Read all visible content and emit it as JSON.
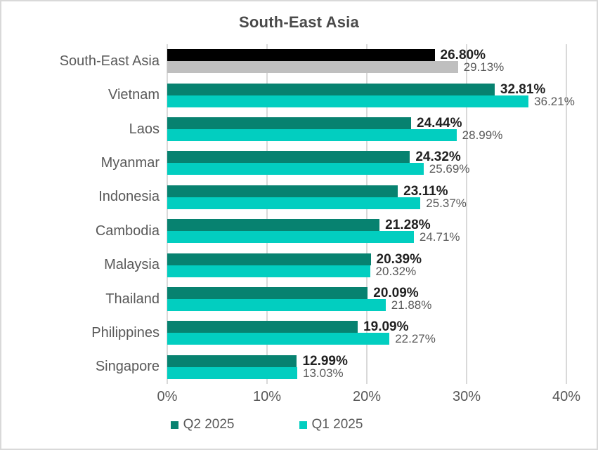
{
  "colors": {
    "gridline": "#D9D9D9",
    "axis_text": "#595959",
    "title_text": "#4A4A4A",
    "value_label_bold": "#212121",
    "value_label_gray": "#595959",
    "frame_border": "#D9D9D9",
    "background": "#FFFFFF"
  },
  "chart_data": {
    "type": "bar",
    "orientation": "horizontal",
    "title": "South-East Asia",
    "xlabel": "",
    "ylabel": "",
    "xlim": [
      0,
      40
    ],
    "x_ticks": [
      "0%",
      "10%",
      "20%",
      "30%",
      "40%"
    ],
    "x_tick_values": [
      0,
      10,
      20,
      30,
      40
    ],
    "grid": "vertical",
    "legend_position": "bottom",
    "categories": [
      "South-East Asia",
      "Vietnam",
      "Laos",
      "Myanmar",
      "Indonesia",
      "Cambodia",
      "Malaysia",
      "Thailand",
      "Philippines",
      "Singapore"
    ],
    "series": [
      {
        "name": "Q2 2025",
        "color": "#078270",
        "values": [
          26.8,
          32.81,
          24.44,
          24.32,
          23.11,
          21.28,
          20.39,
          20.09,
          19.09,
          12.99
        ],
        "value_labels": [
          "26.80%",
          "32.81%",
          "24.44%",
          "24.32%",
          "23.11%",
          "21.28%",
          "20.39%",
          "20.09%",
          "19.09%",
          "12.99%"
        ]
      },
      {
        "name": "Q1 2025",
        "color": "#02CEC0",
        "values": [
          29.13,
          36.21,
          28.99,
          25.69,
          25.37,
          24.71,
          20.32,
          21.88,
          22.27,
          13.03
        ],
        "value_labels": [
          "29.13%",
          "36.21%",
          "28.99%",
          "25.69%",
          "25.37%",
          "24.71%",
          "20.32%",
          "21.88%",
          "22.27%",
          "13.03%"
        ]
      }
    ],
    "category_color_overrides": {
      "0": [
        "#000000",
        "#BFBFBF"
      ]
    }
  },
  "legend": {
    "items": [
      {
        "label": "Q2 2025",
        "color": "#078270"
      },
      {
        "label": "Q1 2025",
        "color": "#02CEC0"
      }
    ]
  }
}
